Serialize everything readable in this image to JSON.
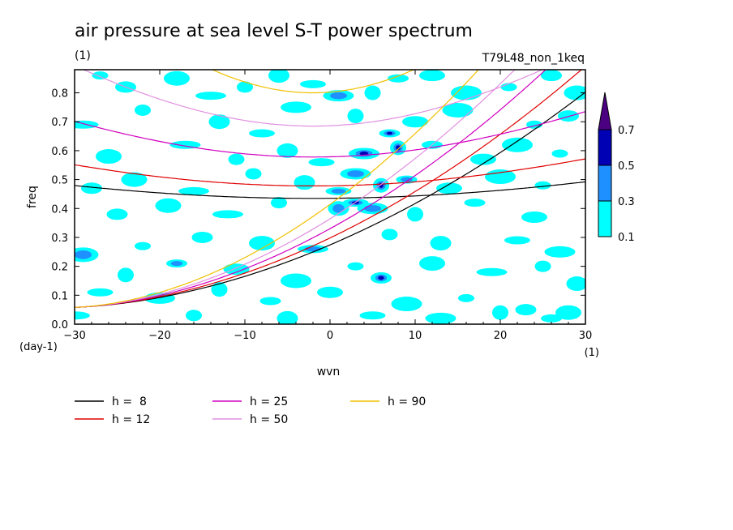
{
  "chart_data": {
    "type": "heatmap",
    "title": "air pressure at sea level S-T power spectrum",
    "units": "(1)",
    "run_label": "T79L48_non_1keq",
    "xlabel": "wvn",
    "x_units": "(1)",
    "ylabel": "freq",
    "y_units": "(day-1)",
    "xlim": [
      -30,
      30
    ],
    "ylim": [
      0,
      0.88
    ],
    "x_ticks": [
      -30,
      -20,
      -10,
      0,
      10,
      20,
      30
    ],
    "y_ticks": [
      0.0,
      0.1,
      0.2,
      0.3,
      0.4,
      0.5,
      0.6,
      0.7,
      0.8
    ],
    "colorbar": {
      "levels": [
        0.1,
        0.3,
        0.5,
        0.7
      ],
      "colors": [
        "#00ffff",
        "#1e90ff",
        "#0000b4",
        "#4b0082"
      ]
    },
    "dispersion_curves": [
      {
        "name": "h =  8",
        "color": "#000000"
      },
      {
        "name": "h = 12",
        "color": "#e00000"
      },
      {
        "name": "h = 25",
        "color": "#d000c0"
      },
      {
        "name": "h = 50",
        "color": "#e090e0"
      },
      {
        "name": "h = 90",
        "color": "#f0c000"
      }
    ],
    "blobs": [
      [
        -27,
        0.86,
        0.2
      ],
      [
        -24,
        0.82,
        0.15
      ],
      [
        -18,
        0.85,
        0.2
      ],
      [
        -14,
        0.79,
        0.2
      ],
      [
        -10,
        0.82,
        0.2
      ],
      [
        -6,
        0.86,
        0.15
      ],
      [
        -2,
        0.83,
        0.2
      ],
      [
        1,
        0.79,
        0.45
      ],
      [
        5,
        0.8,
        0.2
      ],
      [
        8,
        0.85,
        0.2
      ],
      [
        12,
        0.86,
        0.15
      ],
      [
        16,
        0.8,
        0.15
      ],
      [
        21,
        0.82,
        0.2
      ],
      [
        26,
        0.86,
        0.15
      ],
      [
        29,
        0.8,
        0.2
      ],
      [
        -29,
        0.69,
        0.2
      ],
      [
        -22,
        0.74,
        0.15
      ],
      [
        -13,
        0.7,
        0.2
      ],
      [
        -8,
        0.66,
        0.15
      ],
      [
        -4,
        0.75,
        0.2
      ],
      [
        3,
        0.72,
        0.2
      ],
      [
        7,
        0.66,
        0.5
      ],
      [
        10,
        0.7,
        0.2
      ],
      [
        15,
        0.74,
        0.15
      ],
      [
        24,
        0.69,
        0.2
      ],
      [
        28,
        0.72,
        0.2
      ],
      [
        -26,
        0.58,
        0.2
      ],
      [
        -17,
        0.62,
        0.2
      ],
      [
        -11,
        0.57,
        0.2
      ],
      [
        -5,
        0.6,
        0.15
      ],
      [
        -1,
        0.56,
        0.2
      ],
      [
        4,
        0.59,
        0.55
      ],
      [
        8,
        0.61,
        0.6
      ],
      [
        12,
        0.62,
        0.2
      ],
      [
        18,
        0.57,
        0.2
      ],
      [
        22,
        0.62,
        0.25
      ],
      [
        27,
        0.59,
        0.2
      ],
      [
        -28,
        0.47,
        0.25
      ],
      [
        -23,
        0.5,
        0.2
      ],
      [
        -16,
        0.46,
        0.2
      ],
      [
        -9,
        0.52,
        0.2
      ],
      [
        -3,
        0.49,
        0.15
      ],
      [
        1,
        0.46,
        0.3
      ],
      [
        3,
        0.52,
        0.45
      ],
      [
        6,
        0.48,
        0.5
      ],
      [
        9,
        0.5,
        0.3
      ],
      [
        14,
        0.47,
        0.2
      ],
      [
        20,
        0.51,
        0.2
      ],
      [
        25,
        0.48,
        0.2
      ],
      [
        -25,
        0.38,
        0.25
      ],
      [
        -19,
        0.41,
        0.2
      ],
      [
        -12,
        0.38,
        0.2
      ],
      [
        -6,
        0.42,
        0.15
      ],
      [
        1,
        0.4,
        0.35
      ],
      [
        3,
        0.42,
        0.55
      ],
      [
        5,
        0.4,
        0.45
      ],
      [
        10,
        0.38,
        0.2
      ],
      [
        17,
        0.42,
        0.2
      ],
      [
        24,
        0.37,
        0.2
      ],
      [
        -29,
        0.24,
        0.4
      ],
      [
        -22,
        0.27,
        0.2
      ],
      [
        -15,
        0.3,
        0.2
      ],
      [
        -8,
        0.28,
        0.2
      ],
      [
        -2,
        0.26,
        0.35
      ],
      [
        7,
        0.31,
        0.2
      ],
      [
        13,
        0.28,
        0.2
      ],
      [
        22,
        0.29,
        0.2
      ],
      [
        27,
        0.25,
        0.2
      ],
      [
        -24,
        0.17,
        0.2
      ],
      [
        -18,
        0.21,
        0.4
      ],
      [
        -11,
        0.19,
        0.2
      ],
      [
        -4,
        0.15,
        0.2
      ],
      [
        3,
        0.2,
        0.2
      ],
      [
        6,
        0.16,
        0.5
      ],
      [
        12,
        0.21,
        0.2
      ],
      [
        19,
        0.18,
        0.2
      ],
      [
        25,
        0.2,
        0.2
      ],
      [
        29,
        0.14,
        0.2
      ],
      [
        -27,
        0.11,
        0.2
      ],
      [
        -20,
        0.09,
        0.2
      ],
      [
        -13,
        0.12,
        0.2
      ],
      [
        -7,
        0.08,
        0.2
      ],
      [
        0,
        0.11,
        0.2
      ],
      [
        9,
        0.07,
        0.2
      ],
      [
        16,
        0.09,
        0.2
      ],
      [
        23,
        0.05,
        0.2
      ],
      [
        28,
        0.04,
        0.2
      ],
      [
        -30,
        0.03,
        0.2
      ],
      [
        -16,
        0.03,
        0.15
      ],
      [
        -5,
        0.02,
        0.2
      ],
      [
        5,
        0.03,
        0.2
      ],
      [
        13,
        0.02,
        0.15
      ],
      [
        20,
        0.04,
        0.2
      ],
      [
        26,
        0.02,
        0.2
      ]
    ]
  }
}
